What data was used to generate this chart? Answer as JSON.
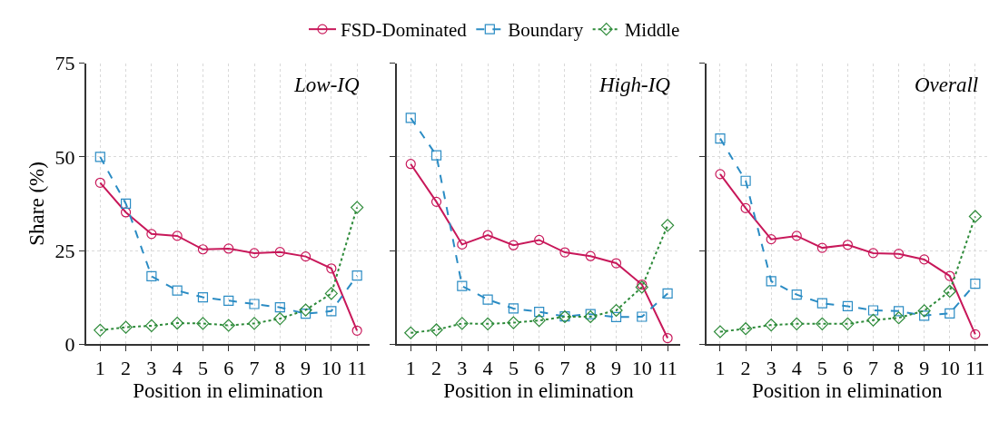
{
  "chart_data": [
    {
      "type": "line",
      "title": "Low-IQ",
      "xlabel": "Position in elimination",
      "ylabel": "Share (%)",
      "x": [
        1,
        2,
        3,
        4,
        5,
        6,
        7,
        8,
        9,
        10,
        11
      ],
      "xlim": [
        0.45,
        11.5
      ],
      "xticks": [
        1,
        2,
        3,
        4,
        5,
        6,
        7,
        8,
        9,
        10,
        11
      ],
      "ylim": [
        0,
        75
      ],
      "yticks": [
        0,
        25,
        50,
        75
      ],
      "grid": true,
      "legend": "top",
      "series": [
        {
          "name": "FSD-Dominated",
          "color": "#c8185a",
          "marker": "circle",
          "line_style": "solid",
          "values": [
            43.1,
            35.2,
            29.4,
            28.9,
            25.3,
            25.5,
            24.3,
            24.6,
            23.4,
            20.2,
            3.6
          ]
        },
        {
          "name": "Boundary",
          "color": "#2b8cc4",
          "marker": "square",
          "line_style": "dashed",
          "values": [
            50,
            37.5,
            18.1,
            14.3,
            12.5,
            11.6,
            10.7,
            9.8,
            8.1,
            8.8,
            18.3
          ]
        },
        {
          "name": "Middle",
          "color": "#2e8b3a",
          "marker": "diamond",
          "line_style": "dotted",
          "values": [
            3.7,
            4.5,
            4.9,
            5.6,
            5.5,
            5.0,
            5.5,
            6.8,
            9.1,
            13.5,
            36.5
          ]
        }
      ]
    },
    {
      "type": "line",
      "title": "High-IQ",
      "xlabel": "Position in elimination",
      "x": [
        1,
        2,
        3,
        4,
        5,
        6,
        7,
        8,
        9,
        10,
        11
      ],
      "xlim": [
        0.45,
        11.5
      ],
      "xticks": [
        1,
        2,
        3,
        4,
        5,
        6,
        7,
        8,
        9,
        10,
        11
      ],
      "ylim": [
        0,
        75
      ],
      "yticks": [
        0,
        25,
        50,
        75
      ],
      "tick_labels": "x",
      "grid": true,
      "series": [
        {
          "color": "#c8185a",
          "marker": "circle",
          "line_style": "solid",
          "values": [
            48.1,
            38.0,
            26.6,
            29.1,
            26.4,
            27.8,
            24.5,
            23.5,
            21.6,
            15.9,
            1.6
          ]
        },
        {
          "color": "#2b8cc4",
          "marker": "square",
          "line_style": "dashed",
          "values": [
            60.4,
            50.4,
            15.5,
            11.9,
            9.5,
            8.6,
            7.4,
            8.0,
            7.2,
            7.3,
            13.5
          ]
        },
        {
          "color": "#2e8b3a",
          "marker": "diamond",
          "line_style": "dotted",
          "values": [
            3.0,
            3.8,
            5.5,
            5.4,
            5.7,
            6.3,
            7.3,
            7.3,
            9.0,
            15.2,
            31.7
          ]
        }
      ]
    },
    {
      "type": "line",
      "title": "Overall",
      "xlabel": "Position in elimination",
      "x": [
        1,
        2,
        3,
        4,
        5,
        6,
        7,
        8,
        9,
        10,
        11
      ],
      "xlim": [
        0.45,
        11.5
      ],
      "xticks": [
        1,
        2,
        3,
        4,
        5,
        6,
        7,
        8,
        9,
        10,
        11
      ],
      "ylim": [
        0,
        75
      ],
      "yticks": [
        0,
        25,
        50,
        75
      ],
      "tick_labels": "x",
      "grid": true,
      "series": [
        {
          "color": "#c8185a",
          "marker": "circle",
          "line_style": "solid",
          "values": [
            45.4,
            36.3,
            28.0,
            28.9,
            25.7,
            26.5,
            24.3,
            24.1,
            22.6,
            18.2,
            2.6
          ]
        },
        {
          "color": "#2b8cc4",
          "marker": "square",
          "line_style": "dashed",
          "values": [
            54.9,
            43.6,
            16.8,
            13.2,
            10.9,
            10.1,
            9.0,
            8.8,
            7.6,
            8.2,
            16.1
          ]
        },
        {
          "color": "#2e8b3a",
          "marker": "diamond",
          "line_style": "dotted",
          "values": [
            3.3,
            4.1,
            5.1,
            5.4,
            5.4,
            5.4,
            6.4,
            7.0,
            8.9,
            14.1,
            34.1
          ]
        }
      ]
    }
  ]
}
